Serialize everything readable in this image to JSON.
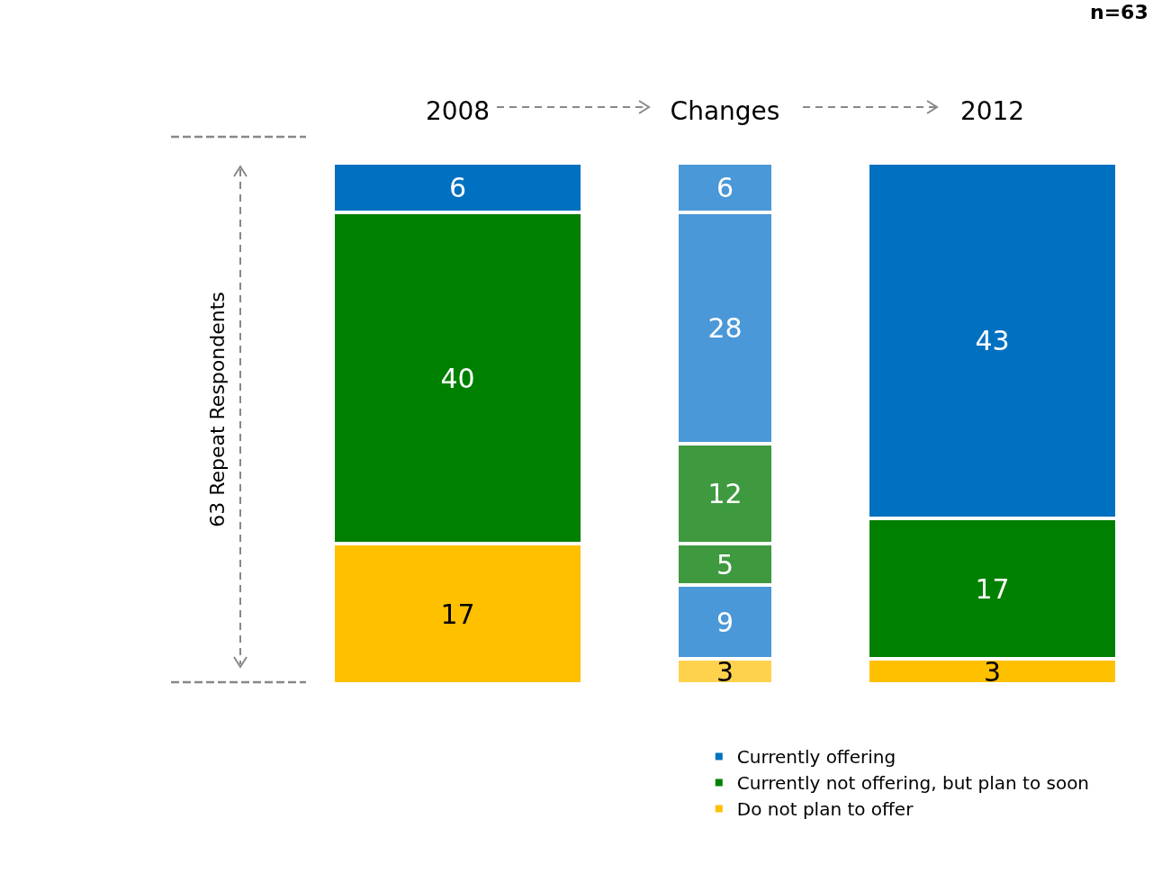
{
  "chart_data": {
    "type": "bar",
    "stacked": true,
    "data_labels": true,
    "tick_labels": "x",
    "grid": false,
    "legend": "bottom right",
    "ylabel": "63 Repeat Respondents",
    "annotations": [
      "n=63"
    ],
    "categories": [
      "2008",
      "Changes",
      "2012"
    ],
    "series": [
      {
        "name": "Do not plan to offer",
        "color": "#ffc000",
        "values": [
          17,
          null,
          3
        ]
      },
      {
        "color": "#ffd24d",
        "values": [
          null,
          3,
          null
        ]
      },
      {
        "color": "#4a98d8",
        "values": [
          null,
          9,
          null
        ]
      },
      {
        "name": "Currently not offering, but plan to soon",
        "color": "#008000",
        "values": [
          40,
          null,
          17
        ]
      },
      {
        "color": "#3f9a3f",
        "values": [
          null,
          5,
          null
        ]
      },
      {
        "color": "#3f9a3f",
        "values": [
          null,
          12,
          null
        ]
      },
      {
        "name": "Currently offering",
        "color": "#0070c0",
        "values": [
          6,
          null,
          43
        ]
      },
      {
        "color": "#4a98d8",
        "values": [
          null,
          28,
          null
        ]
      },
      {
        "color": "#4a98d8",
        "values": [
          null,
          6,
          null
        ]
      }
    ]
  }
}
